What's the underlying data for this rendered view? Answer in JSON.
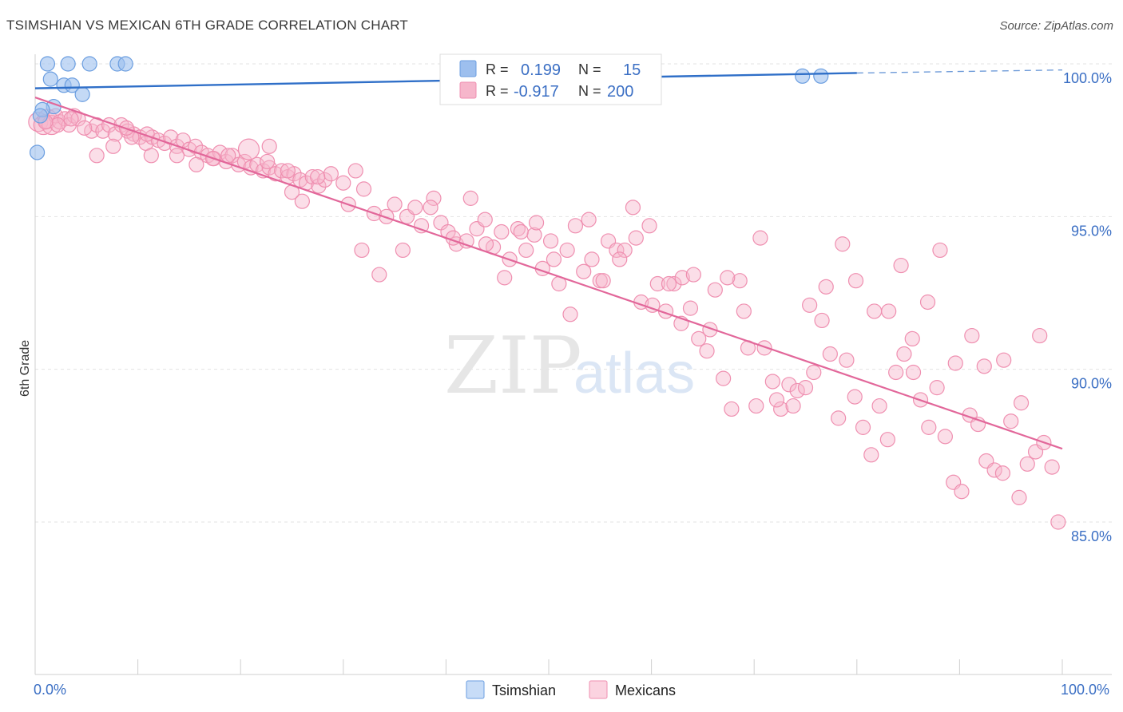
{
  "title": "TSIMSHIAN VS MEXICAN 6TH GRADE CORRELATION CHART",
  "source": "Source: ZipAtlas.com",
  "watermark": {
    "zip": "ZIP",
    "atlas": "atlas"
  },
  "colors": {
    "tsimshian": "#9dbfee",
    "tsimshian_stroke": "#6b9ee0",
    "tsimshian_line": "#2f6fc8",
    "mexicans": "#f6b6cb",
    "mexicans_stroke": "#ef8fb0",
    "mexicans_line": "#e2679a",
    "tick": "#3b6fc4"
  },
  "chart_data": {
    "type": "scatter",
    "title": "TSIMSHIAN VS MEXICAN 6TH GRADE CORRELATION CHART",
    "xlabel": "",
    "ylabel": "6th Grade",
    "xlim": [
      0,
      100
    ],
    "ylim": [
      80.2,
      100.8
    ],
    "x_tick_labels": {
      "left": "0.0%",
      "right": "100.0%"
    },
    "y_ticks": [
      {
        "value": 100,
        "label": "100.0%"
      },
      {
        "value": 95,
        "label": "95.0%"
      },
      {
        "value": 90,
        "label": "90.0%"
      },
      {
        "value": 85,
        "label": "85.0%"
      }
    ],
    "legend": {
      "r_label": "R =",
      "n_label": "N =",
      "entries": [
        {
          "name": "Tsimshian",
          "R": "0.199",
          "N": "15"
        },
        {
          "name": "Mexicans",
          "R": "-0.917",
          "N": "200"
        }
      ]
    },
    "series": [
      {
        "name": "Tsimshian",
        "trend": {
          "x0": 0,
          "y0": 99.2,
          "x1": 80,
          "y1": 99.7,
          "dashed_to": 100,
          "dashed_y": 99.8
        },
        "points": [
          [
            1.2,
            100.0
          ],
          [
            3.2,
            100.0
          ],
          [
            5.3,
            100.0
          ],
          [
            8.0,
            100.0
          ],
          [
            8.8,
            100.0
          ],
          [
            1.5,
            99.5
          ],
          [
            2.8,
            99.3
          ],
          [
            3.6,
            99.3
          ],
          [
            4.6,
            99.0
          ],
          [
            1.8,
            98.6
          ],
          [
            0.7,
            98.5
          ],
          [
            0.2,
            97.1
          ],
          [
            74.7,
            99.6
          ],
          [
            76.5,
            99.6
          ],
          [
            0.5,
            98.3
          ]
        ]
      },
      {
        "name": "Mexicans",
        "trend": {
          "x0": 0,
          "y0": 98.9,
          "x1": 100,
          "y1": 87.4
        },
        "points": [
          [
            0.3,
            98.1
          ],
          [
            0.8,
            98.0
          ],
          [
            1.2,
            98.2
          ],
          [
            1.6,
            98.0
          ],
          [
            2.0,
            98.3
          ],
          [
            2.4,
            98.1
          ],
          [
            2.9,
            98.2
          ],
          [
            3.3,
            98.0
          ],
          [
            3.8,
            98.3
          ],
          [
            4.2,
            98.2
          ],
          [
            5.5,
            97.8
          ],
          [
            6.0,
            98.0
          ],
          [
            6.6,
            97.8
          ],
          [
            7.2,
            98.0
          ],
          [
            7.8,
            97.7
          ],
          [
            8.4,
            98.0
          ],
          [
            9.0,
            97.8
          ],
          [
            9.6,
            97.7
          ],
          [
            10.2,
            97.6
          ],
          [
            10.8,
            97.4
          ],
          [
            11.4,
            97.6
          ],
          [
            12.0,
            97.5
          ],
          [
            12.6,
            97.4
          ],
          [
            13.2,
            97.6
          ],
          [
            13.8,
            97.3
          ],
          [
            14.4,
            97.5
          ],
          [
            15.0,
            97.2
          ],
          [
            15.6,
            97.3
          ],
          [
            16.2,
            97.1
          ],
          [
            16.8,
            97.0
          ],
          [
            17.4,
            96.9
          ],
          [
            18.0,
            97.1
          ],
          [
            18.6,
            96.8
          ],
          [
            19.2,
            97.0
          ],
          [
            19.8,
            96.7
          ],
          [
            20.4,
            96.8
          ],
          [
            21.0,
            96.6
          ],
          [
            21.6,
            96.7
          ],
          [
            22.2,
            96.5
          ],
          [
            22.8,
            96.6
          ],
          [
            23.4,
            96.4
          ],
          [
            24.0,
            96.5
          ],
          [
            24.6,
            96.3
          ],
          [
            25.2,
            96.4
          ],
          [
            25.8,
            96.2
          ],
          [
            26.4,
            96.1
          ],
          [
            27.0,
            96.3
          ],
          [
            27.6,
            96.0
          ],
          [
            28.2,
            96.2
          ],
          [
            6.0,
            97.0
          ],
          [
            20.8,
            97.2
          ],
          [
            22.8,
            97.3
          ],
          [
            24.6,
            96.5
          ],
          [
            26.0,
            95.5
          ],
          [
            28.8,
            96.4
          ],
          [
            30.0,
            96.1
          ],
          [
            31.2,
            96.5
          ],
          [
            32.0,
            95.9
          ],
          [
            33.0,
            95.1
          ],
          [
            34.2,
            95.0
          ],
          [
            35.0,
            95.4
          ],
          [
            36.2,
            95.0
          ],
          [
            37.6,
            94.7
          ],
          [
            38.8,
            95.6
          ],
          [
            39.5,
            94.8
          ],
          [
            40.2,
            94.5
          ],
          [
            41.0,
            94.1
          ],
          [
            42.0,
            94.2
          ],
          [
            43.0,
            94.6
          ],
          [
            43.8,
            94.9
          ],
          [
            44.6,
            94.0
          ],
          [
            45.4,
            94.5
          ],
          [
            46.2,
            93.6
          ],
          [
            47.0,
            94.6
          ],
          [
            47.8,
            93.9
          ],
          [
            48.6,
            94.4
          ],
          [
            49.4,
            93.3
          ],
          [
            50.2,
            94.2
          ],
          [
            51.0,
            92.8
          ],
          [
            51.8,
            93.9
          ],
          [
            52.6,
            94.7
          ],
          [
            53.4,
            93.2
          ],
          [
            54.2,
            93.6
          ],
          [
            55.0,
            92.9
          ],
          [
            55.8,
            94.2
          ],
          [
            56.6,
            93.9
          ],
          [
            57.4,
            93.9
          ],
          [
            58.2,
            95.3
          ],
          [
            59.0,
            92.2
          ],
          [
            59.8,
            94.7
          ],
          [
            60.6,
            92.8
          ],
          [
            61.4,
            91.9
          ],
          [
            62.2,
            92.8
          ],
          [
            63.0,
            93.0
          ],
          [
            63.8,
            92.0
          ],
          [
            64.6,
            91.0
          ],
          [
            65.4,
            90.6
          ],
          [
            66.2,
            92.6
          ],
          [
            67.0,
            89.7
          ],
          [
            67.8,
            88.7
          ],
          [
            68.6,
            92.9
          ],
          [
            69.4,
            90.7
          ],
          [
            70.2,
            88.8
          ],
          [
            71.0,
            90.7
          ],
          [
            71.8,
            89.6
          ],
          [
            72.6,
            88.7
          ],
          [
            73.4,
            89.5
          ],
          [
            74.2,
            89.3
          ],
          [
            75.0,
            89.4
          ],
          [
            75.8,
            89.9
          ],
          [
            76.6,
            91.6
          ],
          [
            77.4,
            90.5
          ],
          [
            78.2,
            88.4
          ],
          [
            79.0,
            90.3
          ],
          [
            79.8,
            89.1
          ],
          [
            80.6,
            88.1
          ],
          [
            81.4,
            87.2
          ],
          [
            82.2,
            88.8
          ],
          [
            83.0,
            87.7
          ],
          [
            83.8,
            89.9
          ],
          [
            84.6,
            90.5
          ],
          [
            85.4,
            91.0
          ],
          [
            86.2,
            89.0
          ],
          [
            87.0,
            88.1
          ],
          [
            87.8,
            89.4
          ],
          [
            88.6,
            87.8
          ],
          [
            89.4,
            86.3
          ],
          [
            90.2,
            86.0
          ],
          [
            91.0,
            88.5
          ],
          [
            91.8,
            88.2
          ],
          [
            92.6,
            87.0
          ],
          [
            93.4,
            86.7
          ],
          [
            94.2,
            86.6
          ],
          [
            95.0,
            88.3
          ],
          [
            95.8,
            85.8
          ],
          [
            96.6,
            86.9
          ],
          [
            97.4,
            87.3
          ],
          [
            98.2,
            87.6
          ],
          [
            99.0,
            86.8
          ],
          [
            99.6,
            85.0
          ],
          [
            17.3,
            96.9
          ],
          [
            18.8,
            97.0
          ],
          [
            22.6,
            96.8
          ],
          [
            25.0,
            95.8
          ],
          [
            27.5,
            96.3
          ],
          [
            30.5,
            95.4
          ],
          [
            31.8,
            93.9
          ],
          [
            33.5,
            93.1
          ],
          [
            35.8,
            93.9
          ],
          [
            37.0,
            95.3
          ],
          [
            38.5,
            95.3
          ],
          [
            40.7,
            94.3
          ],
          [
            42.4,
            95.6
          ],
          [
            43.9,
            94.1
          ],
          [
            45.7,
            93.0
          ],
          [
            47.3,
            94.5
          ],
          [
            48.8,
            94.8
          ],
          [
            50.5,
            93.6
          ],
          [
            52.1,
            91.8
          ],
          [
            53.9,
            94.9
          ],
          [
            55.3,
            92.9
          ],
          [
            56.9,
            93.6
          ],
          [
            58.5,
            94.3
          ],
          [
            60.1,
            92.1
          ],
          [
            61.7,
            92.8
          ],
          [
            62.9,
            91.5
          ],
          [
            64.1,
            93.1
          ],
          [
            65.7,
            91.3
          ],
          [
            67.4,
            93.0
          ],
          [
            69.0,
            91.9
          ],
          [
            70.6,
            94.3
          ],
          [
            72.2,
            89.0
          ],
          [
            73.8,
            88.8
          ],
          [
            75.4,
            92.1
          ],
          [
            77.0,
            92.7
          ],
          [
            78.6,
            94.1
          ],
          [
            79.9,
            92.9
          ],
          [
            81.7,
            91.9
          ],
          [
            83.1,
            91.9
          ],
          [
            84.3,
            93.4
          ],
          [
            85.5,
            89.9
          ],
          [
            86.9,
            92.2
          ],
          [
            88.1,
            93.9
          ],
          [
            89.6,
            90.2
          ],
          [
            91.2,
            91.1
          ],
          [
            92.4,
            90.1
          ],
          [
            94.3,
            90.3
          ],
          [
            96.0,
            88.9
          ],
          [
            97.8,
            91.1
          ],
          [
            15.7,
            96.7
          ],
          [
            13.8,
            97.0
          ],
          [
            11.3,
            97.0
          ],
          [
            9.4,
            97.6
          ],
          [
            7.6,
            97.3
          ],
          [
            8.9,
            97.9
          ],
          [
            4.8,
            97.9
          ],
          [
            3.5,
            98.2
          ],
          [
            2.2,
            98.0
          ],
          [
            1.0,
            98.1
          ],
          [
            10.9,
            97.7
          ]
        ]
      }
    ]
  },
  "bottom_legend": [
    {
      "name": "Tsimshian"
    },
    {
      "name": "Mexicans"
    }
  ]
}
